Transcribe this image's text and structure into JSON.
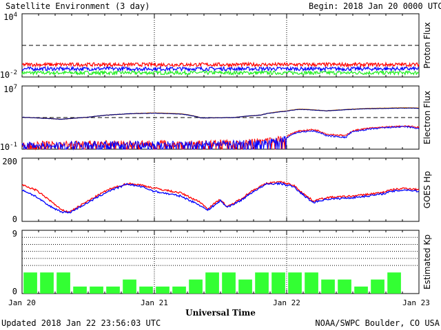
{
  "header": {
    "title": "Satellite Environment (3 day)",
    "begin_label": "Begin:",
    "begin_value": "2018 Jan 20 0000 UTC"
  },
  "footer": {
    "updated": "Updated 2018 Jan 22 23:56:03 UTC",
    "credit": "NOAA/SWPC Boulder, CO USA"
  },
  "x_axis": {
    "label": "Universal Time",
    "ticks": [
      "Jan 20",
      "Jan 21",
      "Jan 22",
      "Jan 23"
    ]
  },
  "colors": {
    "red": "#ff0000",
    "blue": "#0000ff",
    "green": "#22ee22",
    "orange": "#ff9900",
    "navy": "#000080",
    "kp_bar": "#33ff33"
  },
  "chart_data": [
    {
      "type": "line",
      "ylabel": "Proton Flux",
      "yscale": "log",
      "ylim": [
        0.01,
        10000
      ],
      "yticks": [
        {
          "base": "10",
          "exp": "4"
        },
        {
          "base": "10",
          "exp": "-2"
        }
      ],
      "threshold": 10,
      "x_range_days": [
        0,
        3
      ],
      "series": [
        {
          "color": "red",
          "level": 0.15
        },
        {
          "color": "blue",
          "level": 0.06
        },
        {
          "color": "green",
          "level": 0.025
        }
      ]
    },
    {
      "type": "line",
      "ylabel": "Electron Flux",
      "yscale": "log",
      "ylim": [
        0.1,
        10000000
      ],
      "yticks": [
        {
          "base": "10",
          "exp": "7"
        },
        {
          "base": "10",
          "exp": "-1"
        }
      ],
      "threshold": 1000,
      "x_range_days": [
        0,
        3
      ],
      "series": [
        {
          "color": "orange",
          "points": [
            [
              0,
              1100
            ],
            [
              0.3,
              600
            ],
            [
              0.5,
              1100
            ],
            [
              0.8,
              3000
            ],
            [
              1.0,
              4000
            ],
            [
              1.2,
              3000
            ],
            [
              1.35,
              900
            ],
            [
              1.6,
              1000
            ],
            [
              1.8,
              2000
            ],
            [
              2.0,
              7000
            ],
            [
              2.1,
              12000
            ],
            [
              2.3,
              7000
            ],
            [
              2.6,
              14000
            ],
            [
              2.9,
              18000
            ],
            [
              3.0,
              16000
            ]
          ]
        },
        {
          "color": "navy",
          "points": [
            [
              0,
              1100
            ],
            [
              0.3,
              600
            ],
            [
              0.5,
              1100
            ],
            [
              0.8,
              3000
            ],
            [
              1.0,
              3600
            ],
            [
              1.2,
              2800
            ],
            [
              1.35,
              900
            ],
            [
              1.6,
              1000
            ],
            [
              1.8,
              2000
            ],
            [
              2.0,
              6500
            ],
            [
              2.1,
              11000
            ],
            [
              2.3,
              7000
            ],
            [
              2.6,
              13000
            ],
            [
              2.9,
              16000
            ],
            [
              3.0,
              15000
            ]
          ]
        },
        {
          "color": "red",
          "points": [
            [
              0,
              0.4
            ],
            [
              0.5,
              0.5
            ],
            [
              1.0,
              0.5
            ],
            [
              1.4,
              0.6
            ],
            [
              1.7,
              0.8
            ],
            [
              1.9,
              1.2
            ],
            [
              2.0,
              3
            ],
            [
              2.1,
              20
            ],
            [
              2.2,
              30
            ],
            [
              2.3,
              8
            ],
            [
              2.45,
              5
            ],
            [
              2.5,
              20
            ],
            [
              2.6,
              40
            ],
            [
              2.8,
              70
            ],
            [
              2.9,
              80
            ],
            [
              3.0,
              60
            ]
          ]
        },
        {
          "color": "blue",
          "points": [
            [
              0,
              0.3
            ],
            [
              0.5,
              0.4
            ],
            [
              1.0,
              0.4
            ],
            [
              1.4,
              0.5
            ],
            [
              1.7,
              0.6
            ],
            [
              1.9,
              0.9
            ],
            [
              2.0,
              2
            ],
            [
              2.1,
              15
            ],
            [
              2.2,
              20
            ],
            [
              2.3,
              5
            ],
            [
              2.45,
              3
            ],
            [
              2.5,
              15
            ],
            [
              2.6,
              30
            ],
            [
              2.8,
              60
            ],
            [
              2.9,
              70
            ],
            [
              3.0,
              40
            ]
          ]
        }
      ]
    },
    {
      "type": "line",
      "ylabel": "GOES Hp",
      "ylim": [
        0,
        200
      ],
      "yticks": [
        "200",
        "0"
      ],
      "x_range_days": [
        0,
        3
      ],
      "series": [
        {
          "color": "red",
          "points": [
            [
              0,
              115
            ],
            [
              0.1,
              100
            ],
            [
              0.2,
              70
            ],
            [
              0.3,
              35
            ],
            [
              0.36,
              30
            ],
            [
              0.5,
              65
            ],
            [
              0.65,
              100
            ],
            [
              0.8,
              120
            ],
            [
              0.9,
              115
            ],
            [
              1.0,
              105
            ],
            [
              1.2,
              90
            ],
            [
              1.35,
              60
            ],
            [
              1.4,
              40
            ],
            [
              1.45,
              55
            ],
            [
              1.5,
              70
            ],
            [
              1.55,
              45
            ],
            [
              1.65,
              70
            ],
            [
              1.75,
              100
            ],
            [
              1.85,
              120
            ],
            [
              1.95,
              125
            ],
            [
              2.05,
              115
            ],
            [
              2.15,
              80
            ],
            [
              2.2,
              65
            ],
            [
              2.3,
              75
            ],
            [
              2.5,
              80
            ],
            [
              2.7,
              90
            ],
            [
              2.8,
              100
            ],
            [
              2.9,
              105
            ],
            [
              3.0,
              100
            ]
          ]
        },
        {
          "color": "blue",
          "points": [
            [
              0,
              100
            ],
            [
              0.1,
              80
            ],
            [
              0.2,
              50
            ],
            [
              0.3,
              30
            ],
            [
              0.36,
              28
            ],
            [
              0.5,
              60
            ],
            [
              0.65,
              95
            ],
            [
              0.8,
              118
            ],
            [
              0.9,
              110
            ],
            [
              1.0,
              95
            ],
            [
              1.2,
              80
            ],
            [
              1.35,
              50
            ],
            [
              1.4,
              35
            ],
            [
              1.45,
              50
            ],
            [
              1.5,
              65
            ],
            [
              1.55,
              45
            ],
            [
              1.65,
              65
            ],
            [
              1.75,
              95
            ],
            [
              1.85,
              118
            ],
            [
              1.95,
              120
            ],
            [
              2.05,
              110
            ],
            [
              2.15,
              75
            ],
            [
              2.2,
              60
            ],
            [
              2.3,
              70
            ],
            [
              2.5,
              75
            ],
            [
              2.7,
              85
            ],
            [
              2.8,
              95
            ],
            [
              2.9,
              100
            ],
            [
              3.0,
              95
            ]
          ]
        }
      ]
    },
    {
      "type": "bar",
      "ylabel": "Estimated Kp",
      "ylim": [
        0,
        9
      ],
      "yticks": [
        "9",
        "0"
      ],
      "values": [
        3,
        3,
        3,
        1,
        1,
        1,
        2,
        1,
        1,
        1,
        2,
        3,
        3,
        2,
        3,
        3,
        3,
        3,
        2,
        2,
        1,
        2,
        3,
        0
      ]
    }
  ]
}
